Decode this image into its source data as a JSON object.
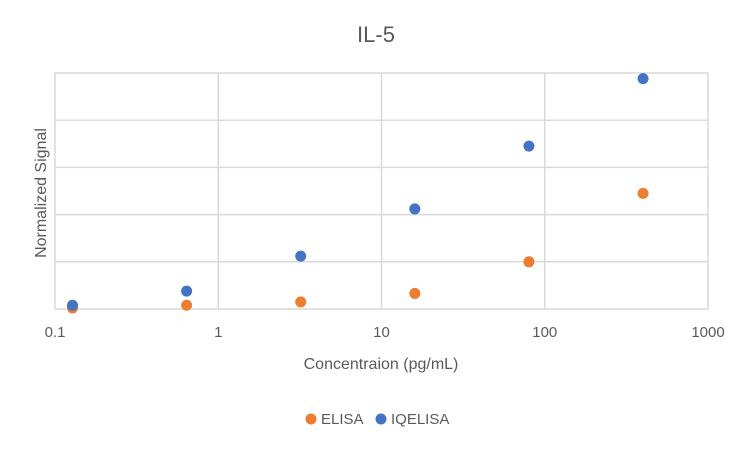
{
  "chart_data": {
    "type": "scatter",
    "title": "IL-5",
    "xlabel": "Concentraion (pg/mL)",
    "ylabel": "Normalized Signal",
    "xscale": "log",
    "xlim": [
      0.1,
      1000
    ],
    "ylim": [
      0,
      5
    ],
    "x_ticks": [
      "0.1",
      "1",
      "10",
      "100",
      "1000"
    ],
    "y_ticks_labeled": false,
    "grid": true,
    "legend_position": "bottom",
    "series": [
      {
        "name": "ELISA",
        "color": "#ED7D31",
        "x": [
          0.128,
          0.64,
          3.2,
          16,
          80,
          400
        ],
        "y": [
          0.02,
          0.08,
          0.15,
          0.33,
          1.0,
          2.45
        ]
      },
      {
        "name": "IQELISA",
        "color": "#4472C4",
        "x": [
          0.128,
          0.64,
          3.2,
          16,
          80,
          400
        ],
        "y": [
          0.08,
          0.38,
          1.12,
          2.12,
          3.45,
          4.88
        ]
      }
    ]
  }
}
